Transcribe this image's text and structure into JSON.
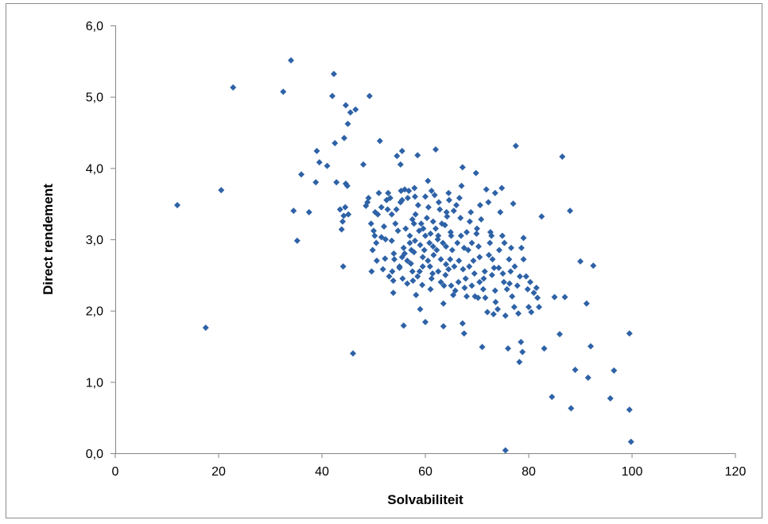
{
  "chart_data": {
    "type": "scatter",
    "title": "",
    "xlabel": "Solvabiliteit",
    "ylabel": "Direct rendement",
    "xlim": [
      0,
      120
    ],
    "ylim": [
      0,
      6
    ],
    "x_ticks": [
      "0",
      "20",
      "40",
      "60",
      "80",
      "100",
      "120"
    ],
    "y_ticks": [
      "0,0",
      "1,0",
      "2,0",
      "3,0",
      "4,0",
      "5,0",
      "6,0"
    ],
    "grid": false,
    "legend": "none",
    "marker": "diamond",
    "color": "#2e62a6",
    "series": [
      {
        "points": [
          [
            12.0,
            3.48
          ],
          [
            17.5,
            1.76
          ],
          [
            20.5,
            3.69
          ],
          [
            22.8,
            5.13
          ],
          [
            32.5,
            5.07
          ],
          [
            34.0,
            5.51
          ],
          [
            34.5,
            3.4
          ],
          [
            35.2,
            2.98
          ],
          [
            36.0,
            3.91
          ],
          [
            37.5,
            3.38
          ],
          [
            39.0,
            4.24
          ],
          [
            39.5,
            4.08
          ],
          [
            38.8,
            3.8
          ],
          [
            41.0,
            4.03
          ],
          [
            42.3,
            5.32
          ],
          [
            42.0,
            5.01
          ],
          [
            42.5,
            4.35
          ],
          [
            42.8,
            3.8
          ],
          [
            43.5,
            3.42
          ],
          [
            43.8,
            3.14
          ],
          [
            44.0,
            3.25
          ],
          [
            44.2,
            3.33
          ],
          [
            44.5,
            3.45
          ],
          [
            44.3,
            4.42
          ],
          [
            44.6,
            4.88
          ],
          [
            45.0,
            4.62
          ],
          [
            45.5,
            4.78
          ],
          [
            46.5,
            4.82
          ],
          [
            44.6,
            3.78
          ],
          [
            44.9,
            3.75
          ],
          [
            45.1,
            3.35
          ],
          [
            44.1,
            2.62
          ],
          [
            46.0,
            1.4
          ],
          [
            48.0,
            4.05
          ],
          [
            48.5,
            3.47
          ],
          [
            48.8,
            3.52
          ],
          [
            49.0,
            3.58
          ],
          [
            49.2,
            5.01
          ],
          [
            49.5,
            3.22
          ],
          [
            50.0,
            3.12
          ],
          [
            50.2,
            3.05
          ],
          [
            50.5,
            2.95
          ],
          [
            49.8,
            2.85
          ],
          [
            50.8,
            3.35
          ],
          [
            51.2,
            4.38
          ],
          [
            51.0,
            3.65
          ],
          [
            51.5,
            3.45
          ],
          [
            51.5,
            3.03
          ],
          [
            52.0,
            3.18
          ],
          [
            52.2,
            2.73
          ],
          [
            52.5,
            3.55
          ],
          [
            52.8,
            3.65
          ],
          [
            53.0,
            2.48
          ],
          [
            53.2,
            3.58
          ],
          [
            53.5,
            2.98
          ],
          [
            53.5,
            3.35
          ],
          [
            53.8,
            2.25
          ],
          [
            53.8,
            2.42
          ],
          [
            54.0,
            2.72
          ],
          [
            54.2,
            3.22
          ],
          [
            54.5,
            4.17
          ],
          [
            54.7,
            3.12
          ],
          [
            55.0,
            2.6
          ],
          [
            55.0,
            2.62
          ],
          [
            55.2,
            3.52
          ],
          [
            55.2,
            4.05
          ],
          [
            55.5,
            4.24
          ],
          [
            55.5,
            3.55
          ],
          [
            55.8,
            2.88
          ],
          [
            55.8,
            1.79
          ],
          [
            56.0,
            3.7
          ],
          [
            56.0,
            2.8
          ],
          [
            56.5,
            2.7
          ],
          [
            56.5,
            2.38
          ],
          [
            56.8,
            3.68
          ],
          [
            57.0,
            3.05
          ],
          [
            57.0,
            2.95
          ],
          [
            57.2,
            2.66
          ],
          [
            57.5,
            3.28
          ],
          [
            57.5,
            2.55
          ],
          [
            57.8,
            3.22
          ],
          [
            57.8,
            2.82
          ],
          [
            58.0,
            3.6
          ],
          [
            58.0,
            2.98
          ],
          [
            58.2,
            2.22
          ],
          [
            58.5,
            2.48
          ],
          [
            58.5,
            4.18
          ],
          [
            58.8,
            3.12
          ],
          [
            59.0,
            2.92
          ],
          [
            59.0,
            2.02
          ],
          [
            59.2,
            3.22
          ],
          [
            59.5,
            2.75
          ],
          [
            59.5,
            2.62
          ],
          [
            59.8,
            2.85
          ],
          [
            60.0,
            3.05
          ],
          [
            60.0,
            3.6
          ],
          [
            60.0,
            1.84
          ],
          [
            60.3,
            3.3
          ],
          [
            60.5,
            2.7
          ],
          [
            60.5,
            3.82
          ],
          [
            60.8,
            2.95
          ],
          [
            61.0,
            3.08
          ],
          [
            61.0,
            2.3
          ],
          [
            61.2,
            2.45
          ],
          [
            61.5,
            3.25
          ],
          [
            61.5,
            2.9
          ],
          [
            61.8,
            3.62
          ],
          [
            62.0,
            4.26
          ],
          [
            62.0,
            3.15
          ],
          [
            62.2,
            2.85
          ],
          [
            62.5,
            2.55
          ],
          [
            62.5,
            3.05
          ],
          [
            62.8,
            3.42
          ],
          [
            63.0,
            2.4
          ],
          [
            63.0,
            2.72
          ],
          [
            63.2,
            3.22
          ],
          [
            63.5,
            2.1
          ],
          [
            63.5,
            1.78
          ],
          [
            63.8,
            3.2
          ],
          [
            64.0,
            2.9
          ],
          [
            64.0,
            2.65
          ],
          [
            64.2,
            3.32
          ],
          [
            64.5,
            2.58
          ],
          [
            64.5,
            3.65
          ],
          [
            64.8,
            2.72
          ],
          [
            65.0,
            3.05
          ],
          [
            65.0,
            2.35
          ],
          [
            65.2,
            2.85
          ],
          [
            65.5,
            3.4
          ],
          [
            65.8,
            2.28
          ],
          [
            66.0,
            3.48
          ],
          [
            66.2,
            2.95
          ],
          [
            66.5,
            2.7
          ],
          [
            66.8,
            3.3
          ],
          [
            67.0,
            3.75
          ],
          [
            67.2,
            4.01
          ],
          [
            67.2,
            1.82
          ],
          [
            67.5,
            2.88
          ],
          [
            67.5,
            1.68
          ],
          [
            67.8,
            2.45
          ],
          [
            68.0,
            3.1
          ],
          [
            68.0,
            2.2
          ],
          [
            68.5,
            2.62
          ],
          [
            68.8,
            3.38
          ],
          [
            69.0,
            2.95
          ],
          [
            69.0,
            2.35
          ],
          [
            69.5,
            2.52
          ],
          [
            69.8,
            3.93
          ],
          [
            70.0,
            3.15
          ],
          [
            70.2,
            2.18
          ],
          [
            70.5,
            2.75
          ],
          [
            70.5,
            2.4
          ],
          [
            70.8,
            3.28
          ],
          [
            71.0,
            1.49
          ],
          [
            71.2,
            2.3
          ],
          [
            71.5,
            2.55
          ],
          [
            71.8,
            3.7
          ],
          [
            72.0,
            1.98
          ],
          [
            72.2,
            3.52
          ],
          [
            72.5,
            2.95
          ],
          [
            72.8,
            3.05
          ],
          [
            73.0,
            2.72
          ],
          [
            73.2,
            1.95
          ],
          [
            73.5,
            3.65
          ],
          [
            73.5,
            2.28
          ],
          [
            74.0,
            2.02
          ],
          [
            74.2,
            2.6
          ],
          [
            74.5,
            3.38
          ],
          [
            74.8,
            3.72
          ],
          [
            75.0,
            2.52
          ],
          [
            75.2,
            2.4
          ],
          [
            75.5,
            1.93
          ],
          [
            75.5,
            0.04
          ],
          [
            75.8,
            2.3
          ],
          [
            76.0,
            1.47
          ],
          [
            76.2,
            2.72
          ],
          [
            76.5,
            2.55
          ],
          [
            76.8,
            2.2
          ],
          [
            77.0,
            3.5
          ],
          [
            77.2,
            2.05
          ],
          [
            77.5,
            4.31
          ],
          [
            77.8,
            2.35
          ],
          [
            78.0,
            1.96
          ],
          [
            78.2,
            1.28
          ],
          [
            78.5,
            1.56
          ],
          [
            78.8,
            1.42
          ],
          [
            79.0,
            2.72
          ],
          [
            79.0,
            3.02
          ],
          [
            79.5,
            2.48
          ],
          [
            79.8,
            2.3
          ],
          [
            80.0,
            2.05
          ],
          [
            80.5,
            1.98
          ],
          [
            81.0,
            2.25
          ],
          [
            81.5,
            2.32
          ],
          [
            82.0,
            2.05
          ],
          [
            82.5,
            3.32
          ],
          [
            83.0,
            1.47
          ],
          [
            84.5,
            0.79
          ],
          [
            85.0,
            2.19
          ],
          [
            86.0,
            1.67
          ],
          [
            86.5,
            4.16
          ],
          [
            87.0,
            2.19
          ],
          [
            88.0,
            3.4
          ],
          [
            88.2,
            0.63
          ],
          [
            89.0,
            1.17
          ],
          [
            90.0,
            2.69
          ],
          [
            91.2,
            2.1
          ],
          [
            91.5,
            1.06
          ],
          [
            92.0,
            1.5
          ],
          [
            92.5,
            2.63
          ],
          [
            95.8,
            0.77
          ],
          [
            96.5,
            1.16
          ],
          [
            99.5,
            1.68
          ],
          [
            99.5,
            0.61
          ],
          [
            99.8,
            0.16
          ],
          [
            52.3,
            3.0
          ],
          [
            53.9,
            2.8
          ],
          [
            55.5,
            2.75
          ],
          [
            56.2,
            3.15
          ],
          [
            57.3,
            2.85
          ],
          [
            58.1,
            3.35
          ],
          [
            58.9,
            2.55
          ],
          [
            59.6,
            3.15
          ],
          [
            60.9,
            2.62
          ],
          [
            61.6,
            2.78
          ],
          [
            62.4,
            3.0
          ],
          [
            63.4,
            2.95
          ],
          [
            63.9,
            2.5
          ],
          [
            64.9,
            3.1
          ],
          [
            65.6,
            2.62
          ],
          [
            66.4,
            2.4
          ],
          [
            67.3,
            2.58
          ],
          [
            68.3,
            2.85
          ],
          [
            69.3,
            2.7
          ],
          [
            70.3,
            2.9
          ],
          [
            71.3,
            2.45
          ],
          [
            72.3,
            2.78
          ],
          [
            73.3,
            2.6
          ],
          [
            74.3,
            2.85
          ],
          [
            75.3,
            2.95
          ],
          [
            76.3,
            2.38
          ],
          [
            77.3,
            2.62
          ],
          [
            78.3,
            2.48
          ],
          [
            54.4,
            3.42
          ],
          [
            56.6,
            3.58
          ],
          [
            58.6,
            3.48
          ],
          [
            60.6,
            3.45
          ],
          [
            62.6,
            3.52
          ],
          [
            64.6,
            3.55
          ],
          [
            66.6,
            3.58
          ],
          [
            68.6,
            3.25
          ],
          [
            70.6,
            3.48
          ],
          [
            72.6,
            3.1
          ],
          [
            51.8,
            2.58
          ],
          [
            53.6,
            2.55
          ],
          [
            55.6,
            2.45
          ],
          [
            57.6,
            2.42
          ],
          [
            59.4,
            2.36
          ],
          [
            61.4,
            2.52
          ],
          [
            63.6,
            2.35
          ],
          [
            65.4,
            2.22
          ],
          [
            67.6,
            2.32
          ],
          [
            69.6,
            2.2
          ],
          [
            71.6,
            2.18
          ],
          [
            73.6,
            2.12
          ],
          [
            50.6,
            2.7
          ],
          [
            49.6,
            2.55
          ],
          [
            50.3,
            3.38
          ],
          [
            52.7,
            3.42
          ],
          [
            55.3,
            3.68
          ],
          [
            57.9,
            3.72
          ],
          [
            61.2,
            3.68
          ],
          [
            64.1,
            3.38
          ],
          [
            66.9,
            3.05
          ],
          [
            69.9,
            3.08
          ],
          [
            72.9,
            2.5
          ],
          [
            74.9,
            3.05
          ],
          [
            76.6,
            2.88
          ],
          [
            78.6,
            2.88
          ],
          [
            80.3,
            2.4
          ],
          [
            81.7,
            2.18
          ]
        ]
      }
    ]
  }
}
